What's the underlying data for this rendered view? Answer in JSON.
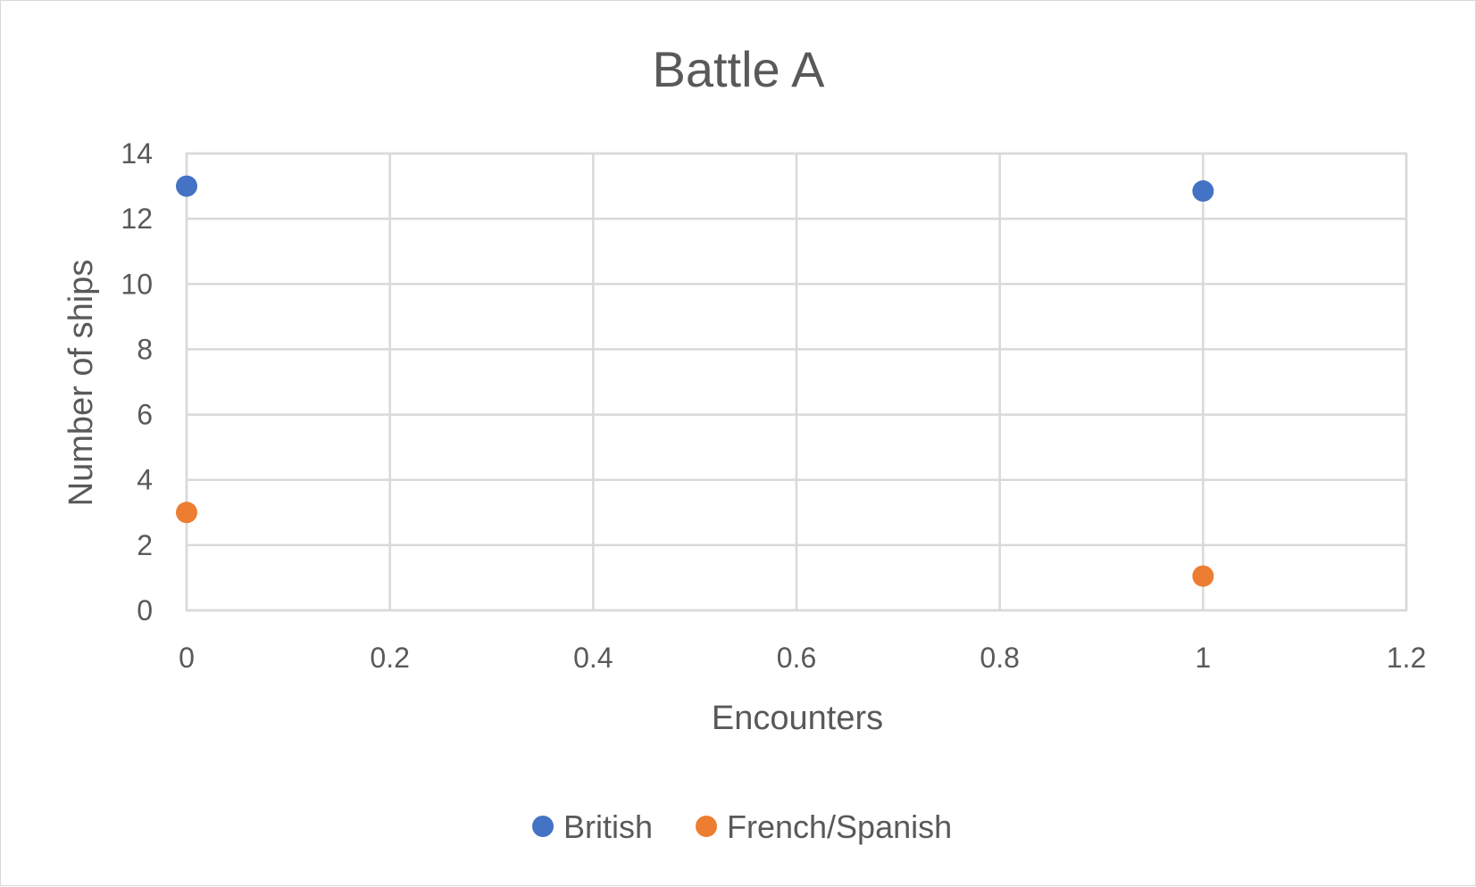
{
  "chart_data": {
    "type": "scatter",
    "title": "Battle A",
    "xlabel": "Encounters",
    "ylabel": "Number of ships",
    "xlim": [
      0,
      1.2
    ],
    "ylim": [
      0,
      14
    ],
    "x_ticks": [
      "0",
      "0.2",
      "0.4",
      "0.6",
      "0.8",
      "1",
      "1.2"
    ],
    "y_ticks": [
      "0",
      "2",
      "4",
      "6",
      "8",
      "10",
      "12",
      "14"
    ],
    "grid": true,
    "legend_position": "bottom",
    "series": [
      {
        "name": "British",
        "color": "#4472c4",
        "points": [
          {
            "x": 0,
            "y": 13
          },
          {
            "x": 1,
            "y": 12.85
          }
        ]
      },
      {
        "name": "French/Spanish",
        "color": "#ed7d31",
        "points": [
          {
            "x": 0,
            "y": 3
          },
          {
            "x": 1,
            "y": 1.05
          }
        ]
      }
    ]
  }
}
